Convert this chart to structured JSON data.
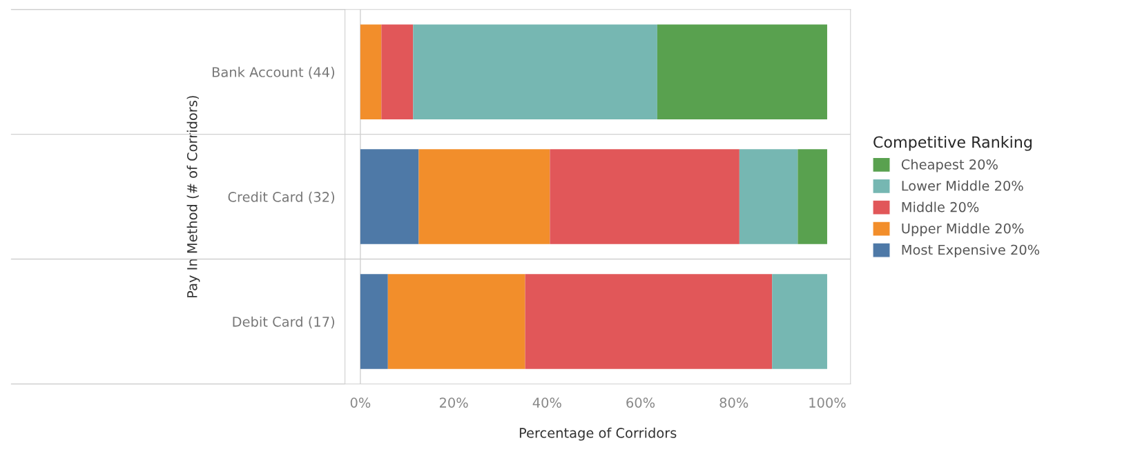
{
  "chart_data": {
    "type": "bar",
    "orientation": "horizontal",
    "stacked": true,
    "xlabel": "Percentage of Corridors",
    "ylabel": "Pay In Method (# of Corridors)",
    "legend_title": "Competitive Ranking",
    "categories": [
      "Bank Account (44)",
      "Credit Card (32)",
      "Debit Card (17)"
    ],
    "series": [
      {
        "name": "Most Expensive 20%",
        "color": "#4e79a7",
        "values": [
          null,
          12.5,
          5.9
        ]
      },
      {
        "name": "Upper Middle 20%",
        "color": "#f28e2b",
        "values": [
          4.5,
          28.1,
          29.4
        ]
      },
      {
        "name": "Middle 20%",
        "color": "#e15759",
        "values": [
          6.8,
          40.6,
          52.9
        ]
      },
      {
        "name": "Lower Middle 20%",
        "color": "#76b7b2",
        "values": [
          52.3,
          12.5,
          11.8
        ]
      },
      {
        "name": "Cheapest 20%",
        "color": "#59a14f",
        "values": [
          36.4,
          6.3,
          null
        ]
      }
    ],
    "xlim": [
      -3.3,
      105
    ],
    "xticks": [
      {
        "value": 0,
        "label": "0%"
      },
      {
        "value": 20,
        "label": "20%"
      },
      {
        "value": 40,
        "label": "40%"
      },
      {
        "value": 60,
        "label": "60%"
      },
      {
        "value": 80,
        "label": "80%"
      },
      {
        "value": 100,
        "label": "100%"
      }
    ],
    "ref_lines": [
      {
        "axis": "x",
        "value": 0,
        "color": "#d0d0d0"
      }
    ],
    "grid": false,
    "legend": "right"
  }
}
